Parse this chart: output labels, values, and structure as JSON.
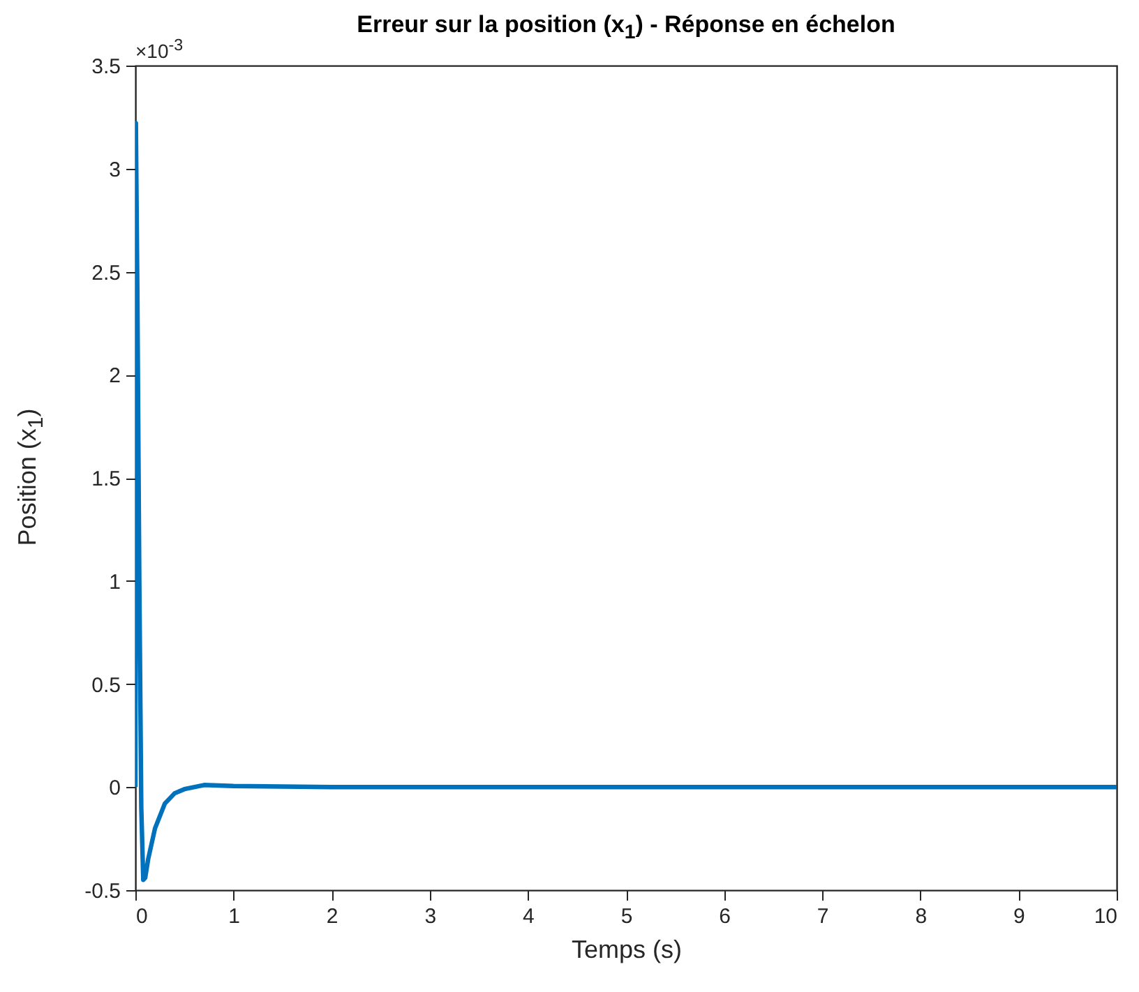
{
  "chart_data": {
    "type": "line",
    "title": "Erreur sur la position (x$_{1}$) - Réponse en échelon",
    "xlabel": "Temps (s)",
    "ylabel": "Position (x$_{1}$)",
    "annotations": [
      "×10$^{-3}$"
    ],
    "x": [
      0,
      0.005,
      0.02,
      0.04,
      0.06,
      0.08,
      0.1,
      0.13,
      0.2,
      0.3,
      0.4,
      0.5,
      0.7,
      1,
      2,
      4,
      6,
      8,
      10
    ],
    "series": [
      {
        "color": "#0072bd",
        "values": [
          0,
          3.22,
          2.4,
          1.0,
          -0.1,
          -0.45,
          -0.44,
          -0.35,
          -0.2,
          -0.08,
          -0.03,
          -0.01,
          0.01,
          0.005,
          0,
          0,
          0,
          0,
          0
        ]
      }
    ],
    "xlim": [
      0,
      10
    ],
    "xticks": [
      0,
      1,
      2,
      3,
      4,
      5,
      6,
      7,
      8,
      9,
      10
    ],
    "ylim": [
      -0.5,
      3.5
    ],
    "yticks": [
      -0.5,
      0,
      0.5,
      1,
      1.5,
      2,
      2.5,
      3,
      3.5
    ],
    "grid": false
  }
}
